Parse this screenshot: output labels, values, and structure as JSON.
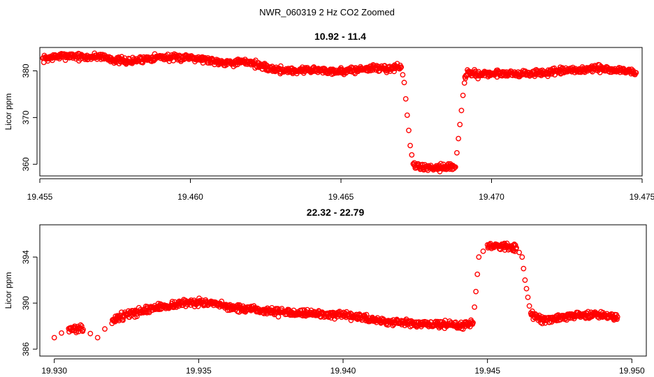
{
  "suptitle": "NWR_060319  2 Hz CO2 Zoomed",
  "chart_data": [
    {
      "type": "scatter",
      "title": "10.92 - 11.4",
      "xlabel": "",
      "ylabel": "Licor ppm",
      "xlim": [
        19.455,
        19.475
      ],
      "ylim": [
        357.5,
        385
      ],
      "xticks": [
        "19.455",
        "19.460",
        "19.465",
        "19.470",
        "19.475"
      ],
      "yticks": [
        "360",
        "370",
        "380"
      ],
      "marker_color": "#ff0000",
      "marker": "open-circle",
      "grid": false,
      "series": [
        {
          "x": [
            19.4551,
            19.4555,
            19.456,
            19.4565,
            19.457,
            19.4575,
            19.458,
            19.4585,
            19.459,
            19.4595,
            19.46,
            19.4605,
            19.461,
            19.4615,
            19.462,
            19.4625,
            19.463,
            19.4635,
            19.464,
            19.4645,
            19.465,
            19.4655,
            19.466,
            19.4665,
            19.467,
            19.4671,
            19.4672,
            19.4673,
            19.4674,
            19.4675,
            19.468,
            19.4685,
            19.4688,
            19.4689,
            19.469,
            19.4691,
            19.4692,
            19.4695,
            19.47,
            19.4705,
            19.471,
            19.4715,
            19.472,
            19.4725,
            19.473,
            19.4735,
            19.474,
            19.4745,
            19.4748
          ],
          "y": [
            382.5,
            383.0,
            383.3,
            382.8,
            383.2,
            382.3,
            382.0,
            382.6,
            383.0,
            382.7,
            383.0,
            382.4,
            381.9,
            381.8,
            381.9,
            380.6,
            380.2,
            380.0,
            380.3,
            380.0,
            379.9,
            380.2,
            380.6,
            380.5,
            380.8,
            377.5,
            370.5,
            364.0,
            360.0,
            359.5,
            359.3,
            359.5,
            359.4,
            365.5,
            371.5,
            378.0,
            379.5,
            379.3,
            379.4,
            379.5,
            379.3,
            379.5,
            379.7,
            380.0,
            380.2,
            380.5,
            380.2,
            380.0,
            379.6
          ]
        }
      ]
    },
    {
      "type": "scatter",
      "title": "22.32 - 22.79",
      "xlabel": "",
      "ylabel": "Licor ppm",
      "xlim": [
        19.9295,
        19.9505
      ],
      "ylim": [
        385.4,
        396.8
      ],
      "xticks": [
        "19.930",
        "19.935",
        "19.940",
        "19.945",
        "19.950"
      ],
      "yticks": [
        "386",
        "390",
        "394"
      ],
      "marker_color": "#ff0000",
      "marker": "open-circle",
      "grid": false,
      "series": [
        {
          "x": [
            19.93,
            19.9305,
            19.931,
            19.9315,
            19.932,
            19.9325,
            19.933,
            19.9335,
            19.934,
            19.9345,
            19.935,
            19.9355,
            19.936,
            19.9365,
            19.937,
            19.9375,
            19.938,
            19.9385,
            19.939,
            19.9395,
            19.94,
            19.9405,
            19.941,
            19.9415,
            19.942,
            19.9425,
            19.943,
            19.9435,
            19.944,
            19.9445,
            19.9446,
            19.9447,
            19.945,
            19.9455,
            19.946,
            19.9462,
            19.9463,
            19.9464,
            19.9465,
            19.947,
            19.9475,
            19.948,
            19.9485,
            19.949,
            19.9495
          ],
          "y": [
            387.0,
            387.8,
            387.7,
            387.0,
            388.5,
            389.0,
            389.3,
            389.6,
            389.8,
            390.0,
            390.1,
            389.9,
            389.7,
            389.5,
            389.4,
            389.3,
            389.2,
            389.2,
            389.1,
            389.0,
            388.9,
            388.8,
            388.6,
            388.4,
            388.3,
            388.2,
            388.1,
            388.2,
            388.0,
            388.3,
            391.0,
            394.0,
            395.0,
            395.0,
            394.8,
            394.0,
            392.0,
            390.5,
            389.0,
            388.5,
            388.7,
            388.9,
            389.0,
            389.0,
            388.8
          ]
        }
      ]
    }
  ]
}
